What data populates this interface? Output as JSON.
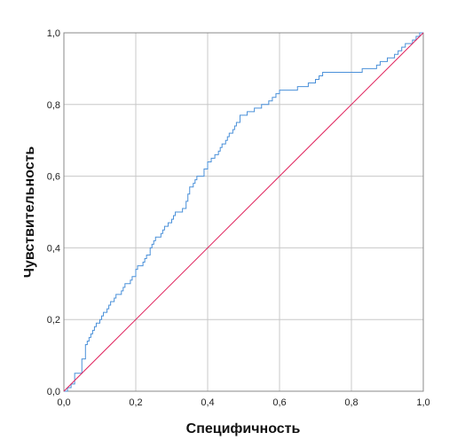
{
  "chart_data": {
    "type": "line",
    "title": "",
    "xlabel": "Специфичность",
    "ylabel": "Чувствительность",
    "xlim": [
      0,
      1
    ],
    "ylim": [
      0,
      1
    ],
    "x_ticks": [
      "0,0",
      "0,2",
      "0,4",
      "0,6",
      "0,8",
      "1,0"
    ],
    "y_ticks": [
      "0,0",
      "0,2",
      "0,4",
      "0,6",
      "0,8",
      "1,0"
    ],
    "grid": true,
    "series": [
      {
        "color": "#4a90d9",
        "style": "step",
        "x": [
          0.0,
          0.01,
          0.02,
          0.03,
          0.03,
          0.05,
          0.05,
          0.06,
          0.06,
          0.065,
          0.07,
          0.075,
          0.08,
          0.085,
          0.09,
          0.1,
          0.105,
          0.11,
          0.12,
          0.125,
          0.13,
          0.14,
          0.145,
          0.16,
          0.165,
          0.17,
          0.18,
          0.185,
          0.19,
          0.2,
          0.205,
          0.21,
          0.22,
          0.225,
          0.23,
          0.24,
          0.245,
          0.25,
          0.255,
          0.26,
          0.27,
          0.275,
          0.28,
          0.29,
          0.3,
          0.305,
          0.31,
          0.32,
          0.33,
          0.34,
          0.345,
          0.35,
          0.36,
          0.365,
          0.37,
          0.38,
          0.39,
          0.4,
          0.41,
          0.42,
          0.43,
          0.435,
          0.44,
          0.45,
          0.455,
          0.46,
          0.47,
          0.475,
          0.48,
          0.49,
          0.5,
          0.51,
          0.52,
          0.53,
          0.54,
          0.55,
          0.56,
          0.57,
          0.58,
          0.59,
          0.6,
          0.605,
          0.61,
          0.62,
          0.65,
          0.68,
          0.69,
          0.7,
          0.71,
          0.72,
          0.73,
          0.74,
          0.76,
          0.8,
          0.83,
          0.85,
          0.87,
          0.88,
          0.89,
          0.9,
          0.91,
          0.92,
          0.93,
          0.94,
          0.95,
          0.96,
          0.97,
          0.98,
          0.99,
          1.0
        ],
        "y": [
          0.0,
          0.01,
          0.02,
          0.03,
          0.05,
          0.07,
          0.09,
          0.11,
          0.13,
          0.14,
          0.15,
          0.16,
          0.17,
          0.18,
          0.19,
          0.2,
          0.21,
          0.22,
          0.23,
          0.24,
          0.25,
          0.26,
          0.27,
          0.28,
          0.29,
          0.3,
          0.3,
          0.31,
          0.32,
          0.34,
          0.35,
          0.35,
          0.36,
          0.37,
          0.38,
          0.4,
          0.41,
          0.42,
          0.43,
          0.43,
          0.44,
          0.45,
          0.46,
          0.47,
          0.48,
          0.49,
          0.5,
          0.5,
          0.51,
          0.53,
          0.55,
          0.57,
          0.58,
          0.59,
          0.6,
          0.6,
          0.62,
          0.64,
          0.65,
          0.66,
          0.67,
          0.68,
          0.69,
          0.7,
          0.71,
          0.72,
          0.73,
          0.74,
          0.75,
          0.77,
          0.77,
          0.78,
          0.78,
          0.79,
          0.79,
          0.8,
          0.8,
          0.81,
          0.82,
          0.83,
          0.84,
          0.84,
          0.84,
          0.84,
          0.85,
          0.86,
          0.86,
          0.87,
          0.88,
          0.89,
          0.89,
          0.89,
          0.89,
          0.89,
          0.9,
          0.9,
          0.91,
          0.92,
          0.92,
          0.93,
          0.93,
          0.94,
          0.95,
          0.96,
          0.97,
          0.97,
          0.98,
          0.99,
          1.0,
          1.0
        ]
      },
      {
        "color": "#e0245e",
        "style": "diagonal",
        "x": [
          0,
          1
        ],
        "y": [
          0,
          1
        ]
      }
    ]
  }
}
